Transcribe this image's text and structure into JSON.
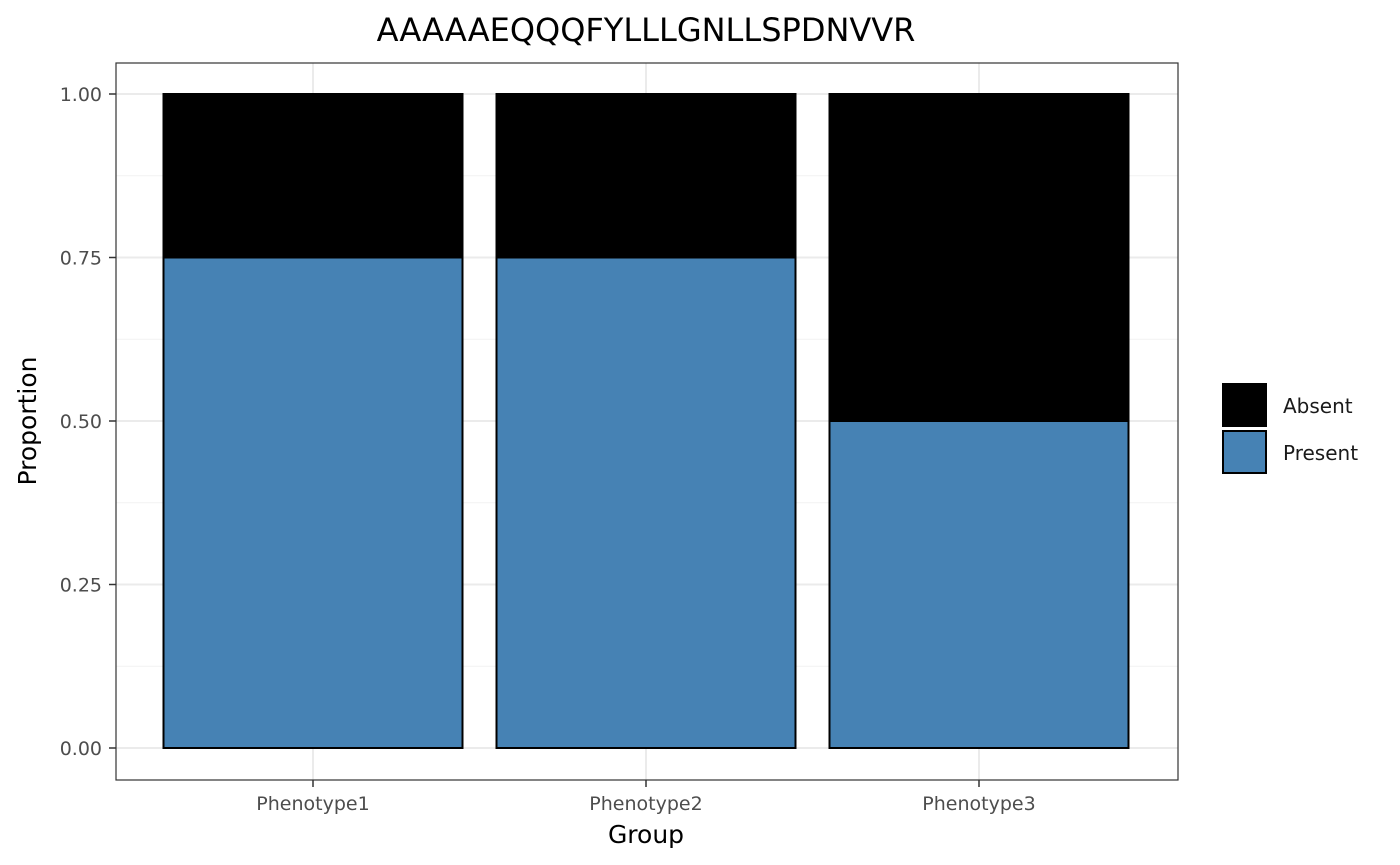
{
  "chart_data": {
    "type": "bar",
    "stacked": true,
    "title": "AAAAAEQQQFYLLLGNLLSPDNVVR",
    "xlabel": "Group",
    "ylabel": "Proportion",
    "categories": [
      "Phenotype1",
      "Phenotype2",
      "Phenotype3"
    ],
    "series": [
      {
        "name": "Present",
        "color": "#4682B4",
        "values": [
          0.75,
          0.75,
          0.5
        ]
      },
      {
        "name": "Absent",
        "color": "#000000",
        "values": [
          0.25,
          0.25,
          0.5
        ]
      }
    ],
    "ylim": [
      0,
      1
    ],
    "yticks": [
      0,
      0.25,
      0.5,
      0.75,
      1
    ],
    "ytick_labels": [
      "0.00",
      "0.25",
      "0.50",
      "0.75",
      "1.00"
    ],
    "legend": {
      "position": "right",
      "entries": [
        {
          "label": "Absent",
          "color": "#000000"
        },
        {
          "label": "Present",
          "color": "#4682B4"
        }
      ]
    },
    "grid": true
  }
}
